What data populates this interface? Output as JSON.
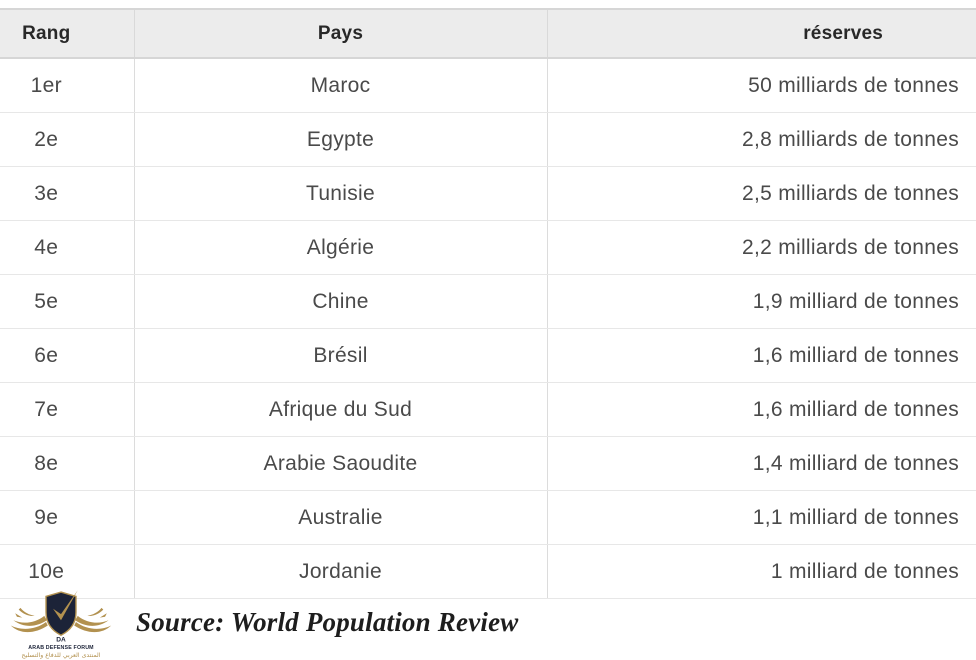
{
  "table": {
    "columns": [
      "Rang",
      "Pays",
      "réserves"
    ],
    "rows": [
      {
        "rank": "1er",
        "country": "Maroc",
        "reserves": "50 milliards de tonnes"
      },
      {
        "rank": "2e",
        "country": "Egypte",
        "reserves": "2,8 milliards de tonnes"
      },
      {
        "rank": "3e",
        "country": "Tunisie",
        "reserves": "2,5 milliards de tonnes"
      },
      {
        "rank": "4e",
        "country": "Algérie",
        "reserves": "2,2 milliards de tonnes"
      },
      {
        "rank": "5e",
        "country": "Chine",
        "reserves": "1,9 milliard de tonnes"
      },
      {
        "rank": "6e",
        "country": "Brésil",
        "reserves": "1,6 milliard de tonnes"
      },
      {
        "rank": "7e",
        "country": "Afrique du Sud",
        "reserves": "1,6 milliard de tonnes"
      },
      {
        "rank": "8e",
        "country": "Arabie Saoudite",
        "reserves": "1,4 milliard de tonnes"
      },
      {
        "rank": "9e",
        "country": "Australie",
        "reserves": "1,1 milliard de tonnes"
      },
      {
        "rank": "10e",
        "country": "Jordanie",
        "reserves": "1 milliard de tonnes"
      }
    ]
  },
  "footer": {
    "source": "Source: World Population Review",
    "logo": {
      "monogram": "DA",
      "name": "ARAB DEFENSE FORUM",
      "arabic": "المنتدى العربي للدفاع والتسليح"
    }
  },
  "colors": {
    "header_bg": "#ececec",
    "header_border": "#d6d6d6",
    "row_border": "#e7e7e7",
    "column_divider": "#dcdcdc",
    "header_text": "#282828",
    "cell_text": "#4a4a4a",
    "logo_navy": "#1c2338",
    "logo_gold": "#b2914f"
  },
  "chart_data": {
    "type": "table",
    "title": "",
    "columns": [
      "Rang",
      "Pays",
      "réserves"
    ],
    "rows": [
      [
        "1er",
        "Maroc",
        "50 milliards de tonnes"
      ],
      [
        "2e",
        "Egypte",
        "2,8 milliards de tonnes"
      ],
      [
        "3e",
        "Tunisie",
        "2,5 milliards de tonnes"
      ],
      [
        "4e",
        "Algérie",
        "2,2 milliards de tonnes"
      ],
      [
        "5e",
        "Chine",
        "1,9 milliard de tonnes"
      ],
      [
        "6e",
        "Brésil",
        "1,6 milliard de tonnes"
      ],
      [
        "7e",
        "Afrique du Sud",
        "1,6 milliard de tonnes"
      ],
      [
        "8e",
        "Arabie Saoudite",
        "1,4 milliard de tonnes"
      ],
      [
        "9e",
        "Australie",
        "1,1 milliard de tonnes"
      ],
      [
        "10e",
        "Jordanie",
        "1 milliard de tonnes"
      ]
    ],
    "reserves_billions_tonnes": [
      50,
      2.8,
      2.5,
      2.2,
      1.9,
      1.6,
      1.6,
      1.4,
      1.1,
      1
    ],
    "source": "World Population Review"
  }
}
